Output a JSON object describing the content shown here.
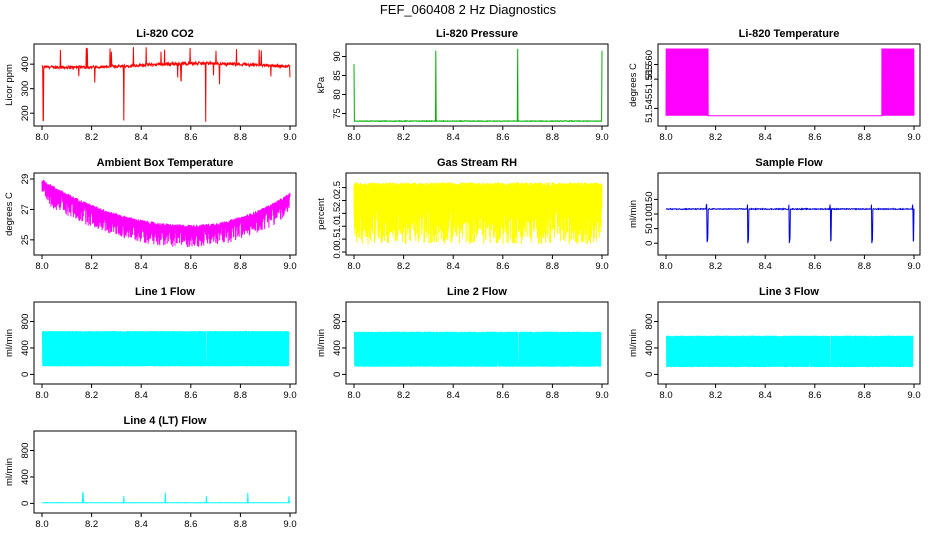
{
  "page": {
    "title": "FEF_060408  2 Hz Diagnostics"
  },
  "chart_data": [
    {
      "id": "co2",
      "type": "line",
      "title": "Li-820 CO2",
      "ylabel": "Licor ppm",
      "color": "#ff0000",
      "xlim": [
        8.0,
        9.0
      ],
      "ylim": [
        160,
        470
      ],
      "x_ticks": [
        "8.0",
        "8.2",
        "8.4",
        "8.6",
        "8.8",
        "9.0"
      ],
      "y_ticks": [
        "200",
        "300",
        "400"
      ],
      "y_tick_values": [
        200,
        300,
        400
      ],
      "profile": {
        "kind": "spiky",
        "base": 395,
        "noise": 12,
        "spike_up": 470,
        "spike_down": [
          [
            8.33,
            170
          ],
          [
            8.66,
            165
          ],
          [
            8.005,
            170
          ]
        ]
      }
    },
    {
      "id": "pressure",
      "type": "line",
      "title": "Li-820 Pressure",
      "ylabel": "kPa",
      "color": "#00b000",
      "xlim": [
        8.0,
        9.0
      ],
      "ylim": [
        72.5,
        92.5
      ],
      "x_ticks": [
        "8.0",
        "8.2",
        "8.4",
        "8.6",
        "8.8",
        "9.0"
      ],
      "y_ticks": [
        "75",
        "80",
        "85",
        "90"
      ],
      "y_tick_values": [
        75,
        80,
        85,
        90
      ],
      "profile": {
        "kind": "flat_spikes",
        "base": 73.0,
        "noise": 0.15,
        "spikes": [
          [
            8.0,
            88
          ],
          [
            8.33,
            91.5
          ],
          [
            8.66,
            92
          ],
          [
            9.0,
            91.5
          ]
        ]
      }
    },
    {
      "id": "licor_temp",
      "type": "line",
      "title": "Li-820 Temperature",
      "ylabel": "degrees C",
      "color": "#ff00ff",
      "xlim": [
        8.0,
        9.0
      ],
      "ylim": [
        51.54,
        51.566
      ],
      "x_ticks": [
        "8.0",
        "8.2",
        "8.4",
        "8.6",
        "8.8",
        "9.0"
      ],
      "y_ticks": [
        "51.545",
        "51.555",
        "51.560"
      ],
      "y_tick_values": [
        51.545,
        51.555,
        51.56
      ],
      "profile": {
        "kind": "toggle",
        "low": 51.5425,
        "high": 51.5655,
        "active": [
          [
            8.0,
            8.17
          ],
          [
            8.87,
            9.0
          ]
        ]
      }
    },
    {
      "id": "box_temp",
      "type": "line",
      "title": "Ambient Box Temperature",
      "ylabel": "degrees C",
      "color": "#ff00ff",
      "xlim": [
        8.0,
        9.0
      ],
      "ylim": [
        24.2,
        29.2
      ],
      "x_ticks": [
        "8.0",
        "8.2",
        "8.4",
        "8.6",
        "8.8",
        "9.0"
      ],
      "y_ticks": [
        "25",
        "27",
        "29"
      ],
      "y_tick_values": [
        25,
        27,
        29
      ],
      "profile": {
        "kind": "bowl",
        "start": 28.8,
        "min": 25.8,
        "end": 27.9,
        "drop": 1.3
      }
    },
    {
      "id": "rh",
      "type": "line",
      "title": "Gas Stream RH",
      "ylabel": "percent",
      "color": "#ffff00",
      "xlim": [
        8.0,
        9.0
      ],
      "ylim": [
        0,
        2.95
      ],
      "x_ticks": [
        "8.0",
        "8.2",
        "8.4",
        "8.6",
        "8.8",
        "9.0"
      ],
      "y_ticks": [
        "0.0",
        "0.5",
        "1.0",
        "1.5",
        "2.0",
        "2.5"
      ],
      "y_tick_values": [
        0,
        0.5,
        1,
        1.5,
        2,
        2.5
      ],
      "profile": {
        "kind": "band",
        "top": 2.6,
        "noise_top": 0.15,
        "bottom_min": 0.3,
        "bottom_max": 1.8
      }
    },
    {
      "id": "sample_flow",
      "type": "line",
      "title": "Sample Flow",
      "ylabel": "ml/min",
      "color": "#0000e0",
      "xlim": [
        8.0,
        9.0
      ],
      "ylim": [
        -30,
        230
      ],
      "x_ticks": [
        "8.0",
        "8.2",
        "8.4",
        "8.6",
        "8.8",
        "9.0"
      ],
      "y_ticks": [
        "0",
        "50",
        "100",
        "150"
      ],
      "y_tick_values": [
        0,
        50,
        100,
        150
      ],
      "profile": {
        "kind": "flat_dips",
        "base": 117,
        "noise": 3,
        "dips": [
          8.165,
          8.33,
          8.497,
          8.663,
          8.83,
          8.996
        ],
        "dip_to": 0
      }
    },
    {
      "id": "line1",
      "type": "line",
      "title": "Line 1 Flow",
      "ylabel": "ml/min",
      "color": "#00ffff",
      "xlim": [
        8.0,
        9.0
      ],
      "ylim": [
        -100,
        1050
      ],
      "x_ticks": [
        "8.0",
        "8.2",
        "8.4",
        "8.6",
        "8.8",
        "9.0"
      ],
      "y_ticks": [
        "0",
        "400",
        "800"
      ],
      "y_tick_values": [
        0,
        400,
        800
      ],
      "profile": {
        "kind": "block",
        "top": 650,
        "bottom": 120,
        "gaps": [
          8.165,
          8.33,
          8.497,
          8.663,
          8.83
        ]
      }
    },
    {
      "id": "line2",
      "type": "line",
      "title": "Line 2 Flow",
      "ylabel": "ml/min",
      "color": "#00ffff",
      "xlim": [
        8.0,
        9.0
      ],
      "ylim": [
        -100,
        1050
      ],
      "x_ticks": [
        "8.0",
        "8.2",
        "8.4",
        "8.6",
        "8.8",
        "9.0"
      ],
      "y_ticks": [
        "0",
        "400",
        "800"
      ],
      "y_tick_values": [
        0,
        400,
        800
      ],
      "profile": {
        "kind": "block",
        "top": 640,
        "bottom": 115,
        "gaps": [
          8.165,
          8.25,
          8.33,
          8.42,
          8.497,
          8.58,
          8.663,
          8.75,
          8.83,
          8.92
        ]
      }
    },
    {
      "id": "line3",
      "type": "line",
      "title": "Line 3 Flow",
      "ylabel": "ml/min",
      "color": "#00ffff",
      "xlim": [
        8.0,
        9.0
      ],
      "ylim": [
        -100,
        1050
      ],
      "x_ticks": [
        "8.0",
        "8.2",
        "8.4",
        "8.6",
        "8.8",
        "9.0"
      ],
      "y_ticks": [
        "0",
        "400",
        "800"
      ],
      "y_tick_values": [
        0,
        400,
        800
      ],
      "profile": {
        "kind": "block",
        "top": 580,
        "bottom": 110,
        "gaps": [
          8.12,
          8.165,
          8.25,
          8.33,
          8.42,
          8.497,
          8.58,
          8.663,
          8.75,
          8.83,
          8.92
        ]
      }
    },
    {
      "id": "line4",
      "type": "line",
      "title": "Line 4 (LT) Flow",
      "ylabel": "ml/min",
      "color": "#00ffff",
      "xlim": [
        8.0,
        9.0
      ],
      "ylim": [
        -100,
        1050
      ],
      "x_ticks": [
        "8.0",
        "8.2",
        "8.4",
        "8.6",
        "8.8",
        "9.0"
      ],
      "y_ticks": [
        "0",
        "400",
        "800"
      ],
      "y_tick_values": [
        0,
        400,
        800
      ],
      "profile": {
        "kind": "flat_spikes",
        "base": 10,
        "noise": 4,
        "spikes": [
          [
            8.165,
            160
          ],
          [
            8.33,
            110
          ],
          [
            8.497,
            160
          ],
          [
            8.663,
            110
          ],
          [
            8.83,
            160
          ],
          [
            8.996,
            110
          ]
        ]
      }
    }
  ]
}
